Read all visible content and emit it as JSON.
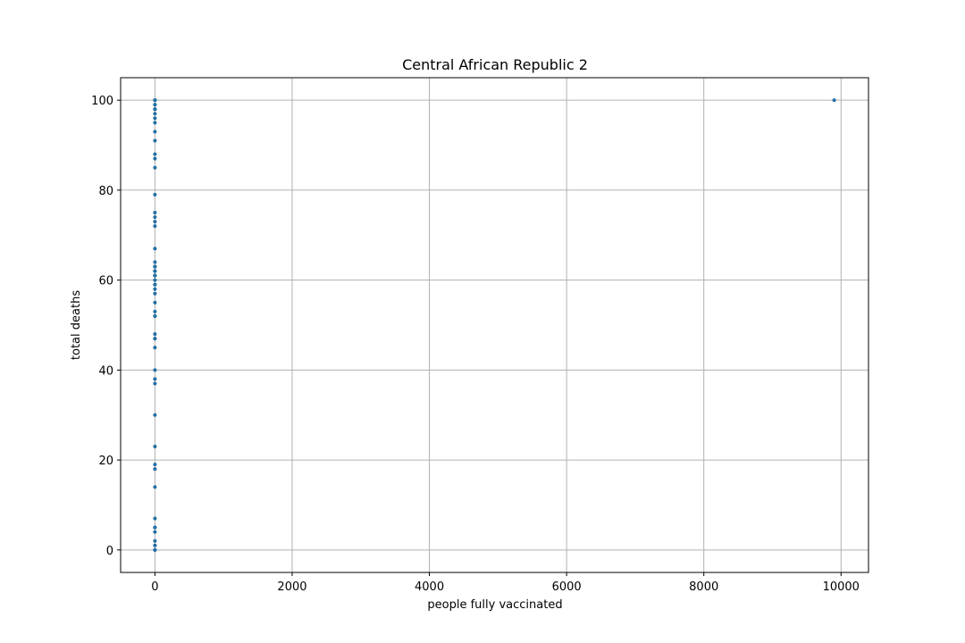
{
  "chart_data": {
    "type": "scatter",
    "title": "Central African Republic 2",
    "xlabel": "people fully vaccinated",
    "ylabel": "total deaths",
    "xlim": [
      -500,
      10400
    ],
    "ylim": [
      -5,
      105
    ],
    "xticks": [
      0,
      2000,
      4000,
      6000,
      8000,
      10000
    ],
    "yticks": [
      0,
      20,
      40,
      60,
      80,
      100
    ],
    "grid": true,
    "marker_color": "#1f77b4",
    "series": [
      {
        "x": [
          0,
          0,
          0,
          0,
          0,
          0,
          0,
          0,
          0,
          0,
          0,
          0,
          0,
          0,
          0,
          0,
          0,
          0,
          0,
          0,
          0,
          0,
          0,
          0,
          0,
          0,
          0,
          0,
          0,
          0,
          0,
          0,
          0,
          0,
          0,
          0,
          0,
          0,
          0,
          0,
          0,
          0,
          0,
          0,
          0,
          0,
          0,
          0,
          0,
          0,
          0,
          0,
          0,
          0,
          0,
          0,
          0,
          0,
          0,
          0,
          0,
          9900
        ],
        "y": [
          0,
          0,
          1,
          1,
          2,
          4,
          5,
          7,
          14,
          18,
          19,
          23,
          30,
          37,
          38,
          40,
          45,
          47,
          48,
          52,
          53,
          55,
          57,
          58,
          59,
          60,
          61,
          61,
          62,
          62,
          63,
          63,
          64,
          67,
          72,
          73,
          74,
          75,
          79,
          85,
          87,
          88,
          91,
          93,
          95,
          96,
          97,
          98,
          98,
          99,
          99,
          100,
          100,
          98,
          63,
          62,
          61,
          59,
          52,
          47,
          5,
          100
        ]
      }
    ]
  }
}
